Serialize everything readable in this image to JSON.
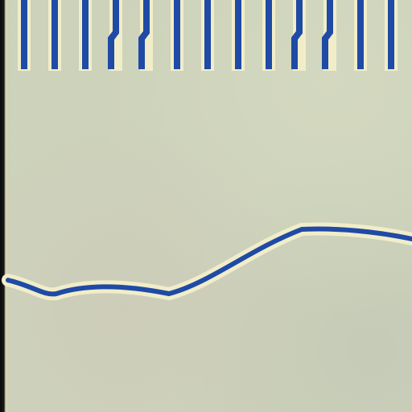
{
  "colors": {
    "background": "#cdd2ba",
    "trace": "#1f4aa6",
    "trace_halo": "#f1edc9",
    "edge": "#0f0f0f"
  },
  "pulse_train": {
    "pulse_count": 13
  },
  "waveform": {
    "description_level": [
      0.32,
      0.31,
      0.3,
      0.3,
      0.29,
      0.3,
      0.33,
      0.37,
      0.43,
      0.47,
      0.46,
      0.45,
      0.44
    ]
  }
}
